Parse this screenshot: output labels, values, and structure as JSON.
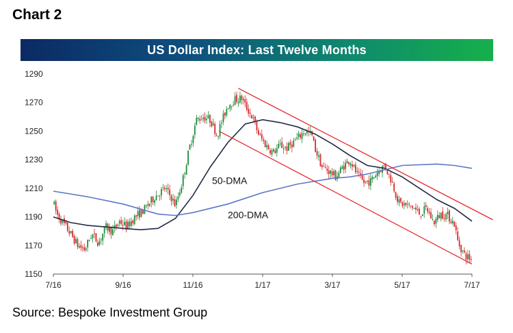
{
  "header": {
    "chart_label": "Chart 2"
  },
  "footer": {
    "source": "Source: Bespoke Investment Group"
  },
  "colors": {
    "up_candle": "#1e8a3a",
    "down_candle": "#d42a2a",
    "ma50": "#1f2a44",
    "ma200": "#5b77c9",
    "channel": "#e8262a",
    "axis": "#555555"
  },
  "chart_data": {
    "type": "candlestick",
    "title": "US Dollar Index: Last Twelve Months",
    "xlabel": "",
    "ylabel": "",
    "ylim": [
      1150,
      1290
    ],
    "yticks": [
      1150,
      1170,
      1190,
      1210,
      1230,
      1250,
      1270,
      1290
    ],
    "x_ticks": [
      "7/16",
      "9/16",
      "11/16",
      "1/17",
      "3/17",
      "5/17",
      "7/17"
    ],
    "x_range_months": [
      0,
      12
    ],
    "grid": false,
    "price_path": [
      [
        0.0,
        1200
      ],
      [
        0.1,
        1192
      ],
      [
        0.3,
        1185
      ],
      [
        0.5,
        1178
      ],
      [
        0.7,
        1170
      ],
      [
        0.9,
        1167
      ],
      [
        1.1,
        1178
      ],
      [
        1.3,
        1172
      ],
      [
        1.5,
        1183
      ],
      [
        1.7,
        1180
      ],
      [
        1.9,
        1187
      ],
      [
        2.1,
        1183
      ],
      [
        2.3,
        1189
      ],
      [
        2.6,
        1195
      ],
      [
        2.9,
        1204
      ],
      [
        3.2,
        1210
      ],
      [
        3.4,
        1203
      ],
      [
        3.5,
        1198
      ],
      [
        3.7,
        1215
      ],
      [
        3.9,
        1238
      ],
      [
        4.1,
        1258
      ],
      [
        4.3,
        1260
      ],
      [
        4.5,
        1258
      ],
      [
        4.7,
        1247
      ],
      [
        4.8,
        1255
      ],
      [
        5.0,
        1268
      ],
      [
        5.2,
        1272
      ],
      [
        5.4,
        1273
      ],
      [
        5.5,
        1268
      ],
      [
        5.7,
        1260
      ],
      [
        5.9,
        1247
      ],
      [
        6.1,
        1240
      ],
      [
        6.3,
        1235
      ],
      [
        6.5,
        1240
      ],
      [
        6.7,
        1238
      ],
      [
        7.0,
        1245
      ],
      [
        7.2,
        1250
      ],
      [
        7.4,
        1248
      ],
      [
        7.5,
        1238
      ],
      [
        7.7,
        1225
      ],
      [
        7.9,
        1222
      ],
      [
        8.1,
        1218
      ],
      [
        8.3,
        1225
      ],
      [
        8.5,
        1230
      ],
      [
        8.7,
        1220
      ],
      [
        8.9,
        1214
      ],
      [
        9.1,
        1215
      ],
      [
        9.3,
        1222
      ],
      [
        9.5,
        1226
      ],
      [
        9.7,
        1215
      ],
      [
        9.9,
        1200
      ],
      [
        10.1,
        1198
      ],
      [
        10.3,
        1197
      ],
      [
        10.5,
        1192
      ],
      [
        10.7,
        1196
      ],
      [
        10.9,
        1186
      ],
      [
        11.1,
        1192
      ],
      [
        11.3,
        1191
      ],
      [
        11.5,
        1185
      ],
      [
        11.6,
        1172
      ],
      [
        11.8,
        1163
      ],
      [
        12.0,
        1160
      ]
    ],
    "series": [
      {
        "name": "50-DMA",
        "x": [
          0.0,
          0.5,
          1.0,
          1.5,
          2.0,
          2.5,
          3.0,
          3.5,
          4.0,
          4.5,
          5.0,
          5.5,
          6.0,
          6.5,
          7.0,
          7.5,
          8.0,
          8.5,
          9.0,
          9.5,
          10.0,
          10.5,
          11.0,
          11.5,
          12.0
        ],
        "values": [
          1190,
          1186,
          1184,
          1183,
          1182,
          1181,
          1182,
          1189,
          1205,
          1225,
          1242,
          1255,
          1258,
          1256,
          1253,
          1248,
          1241,
          1233,
          1226,
          1224,
          1218,
          1210,
          1202,
          1196,
          1187
        ]
      },
      {
        "name": "200-DMA",
        "x": [
          0.0,
          1.0,
          2.0,
          3.0,
          3.5,
          4.0,
          5.0,
          6.0,
          7.0,
          8.0,
          8.5,
          9.0,
          10.0,
          11.0,
          11.5,
          12.0
        ],
        "values": [
          1208,
          1204,
          1199,
          1192,
          1191,
          1193,
          1199,
          1207,
          1213,
          1217,
          1218,
          1220,
          1226,
          1227,
          1226,
          1224
        ]
      }
    ],
    "channel": {
      "upper": {
        "x": [
          5.3,
          12.6
        ],
        "y": [
          1280,
          1188
        ]
      },
      "lower": {
        "x": [
          4.75,
          12.0
        ],
        "y": [
          1250,
          1157
        ]
      }
    },
    "annotations": [
      {
        "text": "50-DMA",
        "x": 4.55,
        "y": 1213
      },
      {
        "text": "200-DMA",
        "x": 5.0,
        "y": 1189
      }
    ]
  }
}
